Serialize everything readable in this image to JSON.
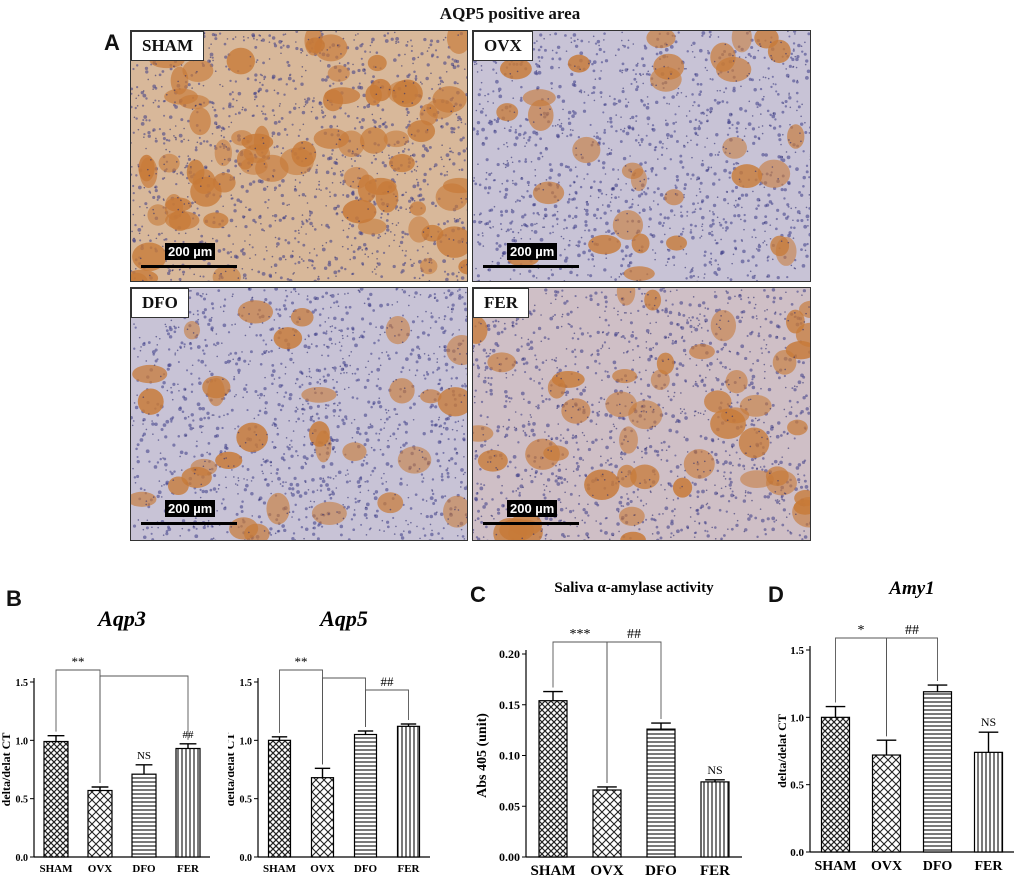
{
  "figure": {
    "title": "AQP5 positive area",
    "panel_labels": {
      "a": "A",
      "b": "B",
      "c": "C",
      "d": "D"
    },
    "micrographs": [
      {
        "label": "SHAM",
        "scale": "200 µm",
        "tone": "dense"
      },
      {
        "label": "OVX",
        "scale": "200 µm",
        "tone": "sparse"
      },
      {
        "label": "DFO",
        "scale": "200 µm",
        "tone": "sparse"
      },
      {
        "label": "FER",
        "scale": "200 µm",
        "tone": "medium"
      }
    ]
  },
  "chart_data": [
    {
      "type": "bar",
      "title": "Aqp3",
      "title_style": "italic",
      "ylabel": "delta/delat CT",
      "categories": [
        "SHAM",
        "OVX",
        "DFO",
        "FER"
      ],
      "values": [
        0.99,
        0.57,
        0.71,
        0.93
      ],
      "errors": [
        0.05,
        0.03,
        0.08,
        0.04
      ],
      "patterns": [
        "checker",
        "wave",
        "hlines",
        "vlines"
      ],
      "ylim": [
        0.0,
        1.5
      ],
      "yticks": [
        "0.0",
        "0.5",
        "1.0",
        "1.5"
      ],
      "annotations": [
        {
          "text": "NS",
          "category": "DFO"
        },
        {
          "text": "##",
          "category": "FER"
        }
      ],
      "brackets": [
        {
          "text": "**",
          "from": "SHAM",
          "to": "OVX"
        },
        {
          "text": "",
          "from": "OVX",
          "to": "FER"
        }
      ]
    },
    {
      "type": "bar",
      "title": "Aqp5",
      "title_style": "italic",
      "ylabel": "delta/delat CT",
      "categories": [
        "SHAM",
        "OVX",
        "DFO",
        "FER"
      ],
      "values": [
        1.0,
        0.68,
        1.05,
        1.12
      ],
      "errors": [
        0.03,
        0.08,
        0.03,
        0.02
      ],
      "patterns": [
        "checker",
        "wave",
        "hlines",
        "vlines"
      ],
      "ylim": [
        0.0,
        1.5
      ],
      "yticks": [
        "0.0",
        "0.5",
        "1.0",
        "1.5"
      ],
      "annotations": [],
      "brackets": [
        {
          "text": "**",
          "from": "SHAM",
          "to": "OVX"
        },
        {
          "text": "",
          "from": "OVX",
          "to": "DFO"
        },
        {
          "text": "##",
          "from": "DFO",
          "to": "FER"
        }
      ]
    },
    {
      "type": "bar",
      "title": "Saliva α-amylase activity",
      "title_style": "bold",
      "ylabel": "Abs 405 (unit)",
      "categories": [
        "SHAM",
        "OVX",
        "DFO",
        "FER"
      ],
      "values": [
        0.154,
        0.066,
        0.126,
        0.074
      ],
      "errors": [
        0.009,
        0.003,
        0.006,
        0.002
      ],
      "patterns": [
        "checker",
        "wave",
        "hlines",
        "vlines"
      ],
      "ylim": [
        0.0,
        0.2
      ],
      "yticks": [
        "0.00",
        "0.05",
        "0.10",
        "0.15",
        "0.20"
      ],
      "annotations": [
        {
          "text": "NS",
          "category": "FER"
        }
      ],
      "brackets": [
        {
          "text": "***",
          "from": "SHAM",
          "to": "OVX"
        },
        {
          "text": "##",
          "from": "OVX",
          "to": "DFO"
        }
      ]
    },
    {
      "type": "bar",
      "title": "Amy1",
      "title_style": "bold-italic",
      "ylabel": "delta/delat CT",
      "categories": [
        "SHAM",
        "OVX",
        "DFO",
        "FER"
      ],
      "values": [
        1.0,
        0.72,
        1.19,
        0.74
      ],
      "errors": [
        0.08,
        0.11,
        0.05,
        0.15
      ],
      "patterns": [
        "checker",
        "wave",
        "hlines",
        "vlines"
      ],
      "ylim": [
        0.0,
        1.5
      ],
      "yticks": [
        "0.0",
        "0.5",
        "1.0",
        "1.5"
      ],
      "annotations": [
        {
          "text": "NS",
          "category": "FER"
        }
      ],
      "brackets": [
        {
          "text": "*",
          "from": "SHAM",
          "to": "OVX"
        },
        {
          "text": "##",
          "from": "OVX",
          "to": "DFO"
        }
      ]
    }
  ]
}
